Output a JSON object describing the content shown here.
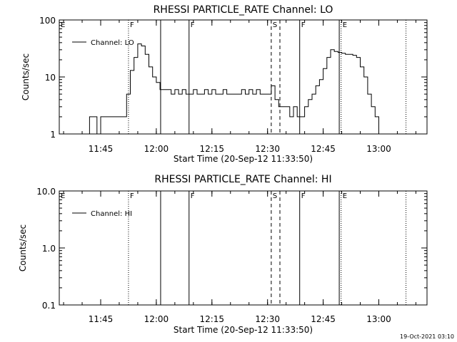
{
  "footer": {
    "timestamp": "19-Oct-2021 03:10"
  },
  "chart_data": [
    {
      "type": "line",
      "title": "RHESSI PARTICLE_RATE Channel: LO",
      "xlabel": "Start Time (20-Sep-12 11:33:50)",
      "ylabel": "Counts/sec",
      "yscale": "log",
      "ylim": [
        1,
        100
      ],
      "xlim": [
        "11:33:50",
        "13:13:00"
      ],
      "x_tick_labels": [
        "11:45",
        "12:00",
        "12:15",
        "12:30",
        "12:45",
        "13:00"
      ],
      "y_tick_labels": [
        "1",
        "10",
        "100"
      ],
      "legend": {
        "placement": "top-left",
        "label": "Channel: LO"
      },
      "series": [
        {
          "name": "Channel: LO",
          "x": [
            "11:34",
            "11:35",
            "11:36",
            "11:37",
            "11:38",
            "11:39",
            "11:40",
            "11:41",
            "11:42",
            "11:43",
            "11:44",
            "11:45",
            "11:46",
            "11:47",
            "11:48",
            "11:49",
            "11:50",
            "11:51",
            "11:52",
            "11:53",
            "11:54",
            "11:55",
            "11:56",
            "11:57",
            "11:58",
            "11:59",
            "12:00",
            "12:01",
            "12:02",
            "12:03",
            "12:04",
            "12:05",
            "12:06",
            "12:07",
            "12:08",
            "12:09",
            "12:10",
            "12:11",
            "12:12",
            "12:13",
            "12:14",
            "12:15",
            "12:16",
            "12:17",
            "12:18",
            "12:19",
            "12:20",
            "12:21",
            "12:22",
            "12:23",
            "12:24",
            "12:25",
            "12:26",
            "12:27",
            "12:28",
            "12:29",
            "12:30",
            "12:31",
            "12:32",
            "12:33",
            "12:34",
            "12:35",
            "12:36",
            "12:37",
            "12:38",
            "12:39",
            "12:40",
            "12:41",
            "12:42",
            "12:43",
            "12:44",
            "12:45",
            "12:46",
            "12:47",
            "12:48",
            "12:49",
            "12:50",
            "12:51",
            "12:52",
            "12:53",
            "12:54",
            "12:55",
            "12:56",
            "12:57",
            "12:58",
            "12:59",
            "13:00",
            "13:01",
            "13:02",
            "13:03",
            "13:04"
          ],
          "y": [
            1,
            1,
            1,
            1,
            1,
            1,
            1,
            1,
            2,
            2,
            1,
            2,
            2,
            2,
            2,
            2,
            2,
            2,
            5,
            13,
            22,
            38,
            35,
            25,
            15,
            10,
            8,
            6,
            6,
            6,
            5,
            6,
            5,
            6,
            5,
            5,
            6,
            5,
            5,
            6,
            5,
            6,
            5,
            5,
            6,
            5,
            5,
            5,
            5,
            6,
            5,
            6,
            5,
            6,
            5,
            5,
            5,
            7,
            4,
            3,
            3,
            3,
            2,
            3,
            2,
            2,
            3,
            4,
            5,
            7,
            9,
            14,
            22,
            30,
            28,
            27,
            26,
            25,
            25,
            24,
            22,
            15,
            10,
            5,
            3,
            2,
            1,
            1,
            1,
            1,
            1
          ]
        }
      ],
      "flags": [
        {
          "label": "E",
          "time": "11:33:50",
          "style": "dotted"
        },
        {
          "label": "F",
          "time": "11:52:30",
          "style": "dotted"
        },
        {
          "label": "",
          "time": "12:01:10",
          "style": "solid"
        },
        {
          "label": "F",
          "time": "12:08:50",
          "style": "solid"
        },
        {
          "label": "S",
          "time": "12:31:00",
          "style": "dashed"
        },
        {
          "label": "",
          "time": "12:33:20",
          "style": "dashed"
        },
        {
          "label": "F",
          "time": "12:38:40",
          "style": "solid"
        },
        {
          "label": "E",
          "time": "12:49:50",
          "style": "dotted"
        },
        {
          "label": "",
          "time": "12:49:20",
          "style": "solid"
        },
        {
          "label": "",
          "time": "13:07:20",
          "style": "dotted"
        }
      ]
    },
    {
      "type": "line",
      "title": "RHESSI PARTICLE_RATE Channel: HI",
      "xlabel": "Start Time (20-Sep-12 11:33:50)",
      "ylabel": "Counts/sec",
      "yscale": "log",
      "ylim": [
        0.1,
        10
      ],
      "xlim": [
        "11:33:50",
        "13:13:00"
      ],
      "x_tick_labels": [
        "11:45",
        "12:00",
        "12:15",
        "12:30",
        "12:45",
        "13:00"
      ],
      "y_tick_labels": [
        "0.1",
        "1.0",
        "10.0"
      ],
      "legend": {
        "placement": "top-left",
        "label": "Channel: HI"
      },
      "series": [
        {
          "name": "Channel: HI",
          "x": [],
          "y": []
        }
      ],
      "flags": [
        {
          "label": "E",
          "time": "11:33:50",
          "style": "dotted"
        },
        {
          "label": "F",
          "time": "11:52:30",
          "style": "dotted"
        },
        {
          "label": "",
          "time": "12:01:10",
          "style": "solid"
        },
        {
          "label": "F",
          "time": "12:08:50",
          "style": "solid"
        },
        {
          "label": "S",
          "time": "12:31:00",
          "style": "dashed"
        },
        {
          "label": "",
          "time": "12:33:20",
          "style": "dashed"
        },
        {
          "label": "F",
          "time": "12:38:40",
          "style": "solid"
        },
        {
          "label": "E",
          "time": "12:49:50",
          "style": "dotted"
        },
        {
          "label": "",
          "time": "12:49:20",
          "style": "solid"
        },
        {
          "label": "",
          "time": "13:07:20",
          "style": "dotted"
        }
      ]
    }
  ]
}
